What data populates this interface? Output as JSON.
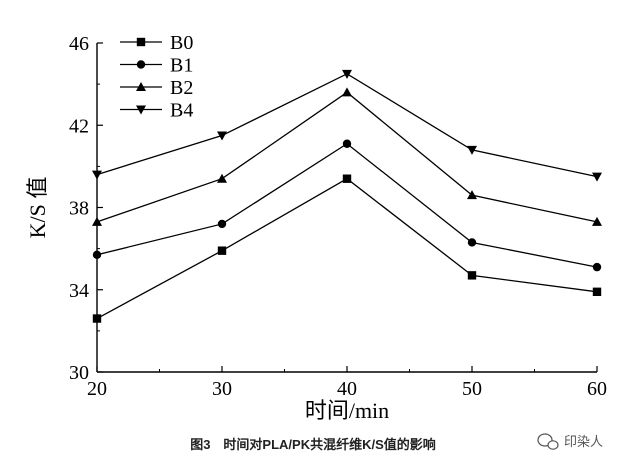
{
  "chart_data": {
    "type": "line",
    "x": [
      20,
      30,
      40,
      50,
      60
    ],
    "xlim": [
      20,
      60
    ],
    "ylim": [
      30,
      46
    ],
    "x_ticks": [
      "20",
      "30",
      "40",
      "50",
      "60"
    ],
    "y_ticks": [
      "30",
      "34",
      "38",
      "42",
      "46"
    ],
    "xlabel": "时间/min",
    "ylabel": "K/S 值",
    "grid": false,
    "legend_position": "top-left",
    "series": [
      {
        "name": "B0",
        "marker": "square",
        "values": [
          32.6,
          35.9,
          39.4,
          34.7,
          33.9
        ]
      },
      {
        "name": "B1",
        "marker": "circle",
        "values": [
          35.7,
          37.2,
          41.1,
          36.3,
          35.1
        ]
      },
      {
        "name": "B2",
        "marker": "triangle-up",
        "values": [
          37.3,
          39.4,
          43.6,
          38.6,
          37.3
        ]
      },
      {
        "name": "B4",
        "marker": "triangle-down",
        "values": [
          39.6,
          41.5,
          44.5,
          40.8,
          39.5
        ]
      }
    ]
  },
  "caption": "图3　时间对PLA/PK共混纤维K/S值的影响",
  "watermark": {
    "text": "印染人",
    "icon": "wechat-icon"
  },
  "colors": {
    "line": "#000000",
    "background": "#ffffff",
    "watermark": "#555555"
  }
}
